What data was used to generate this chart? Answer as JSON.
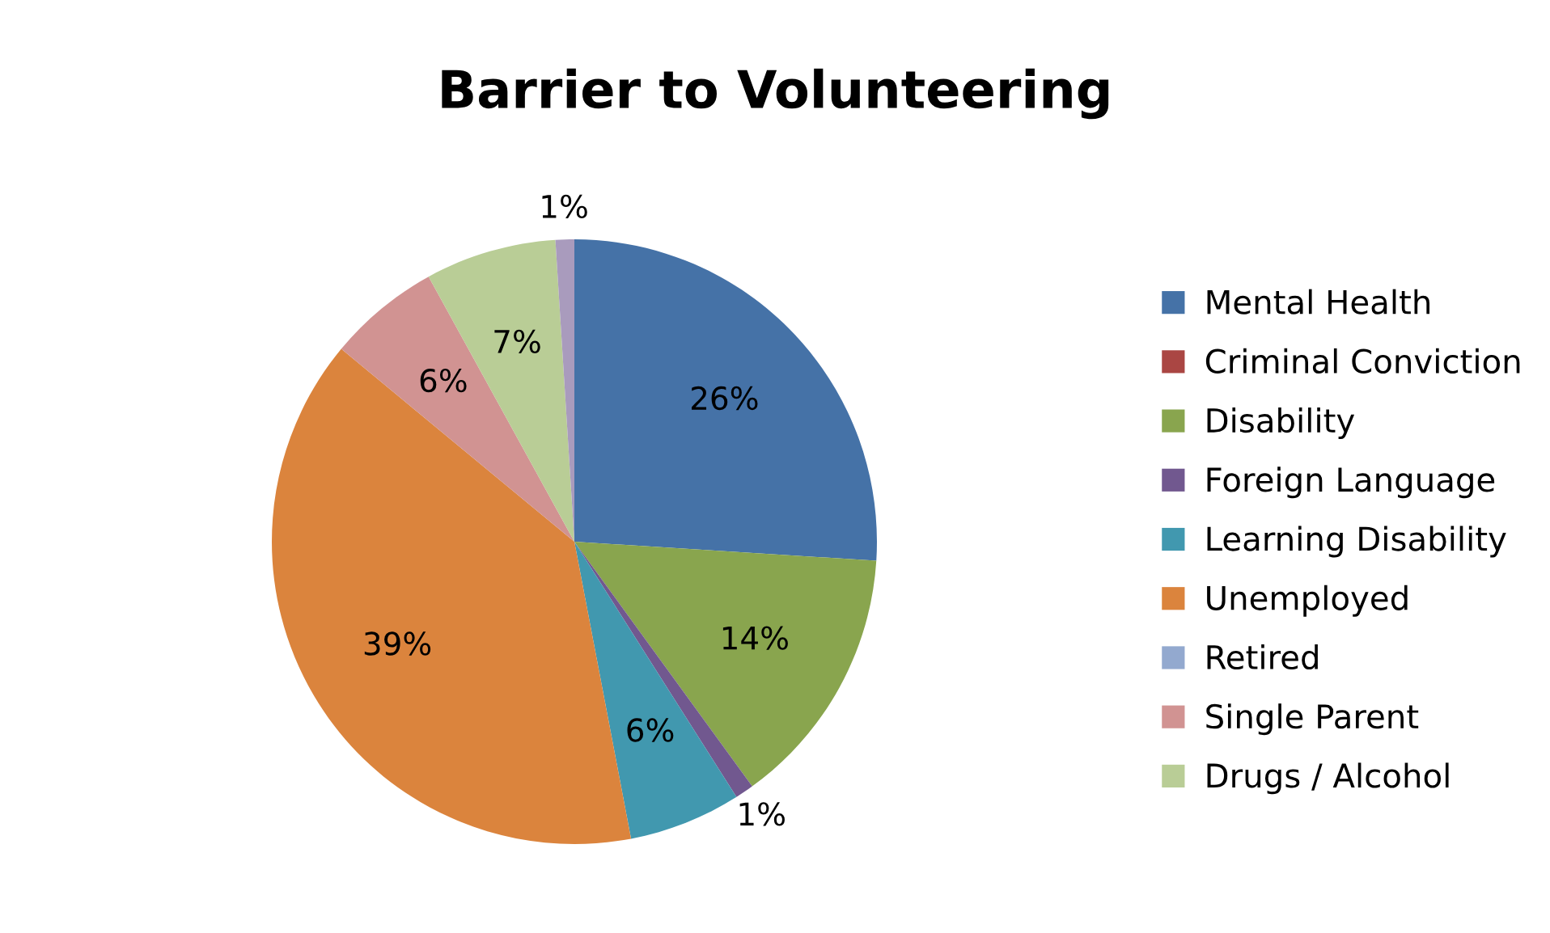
{
  "chart_data": {
    "type": "pie",
    "title": "Barrier to Volunteering",
    "categories": [
      "Mental Health",
      "Criminal Conviction",
      "Disability",
      "Foreign Language",
      "Learning Disability",
      "Unemployed",
      "Retired",
      "Single Parent",
      "Drugs / Alcohol",
      null
    ],
    "values": [
      26,
      0,
      14,
      1,
      6,
      39,
      0,
      6,
      7,
      1
    ],
    "colors": [
      "#4572a7",
      "#aa4643",
      "#89a54e",
      "#71588f",
      "#4198af",
      "#db843d",
      "#93a9cf",
      "#d19392",
      "#b9cd96",
      "#a99bbd"
    ],
    "value_labels": [
      "26%",
      null,
      "14%",
      "1%",
      "6%",
      "39%",
      null,
      "6%",
      "7%",
      "1%"
    ],
    "legend": "right"
  }
}
